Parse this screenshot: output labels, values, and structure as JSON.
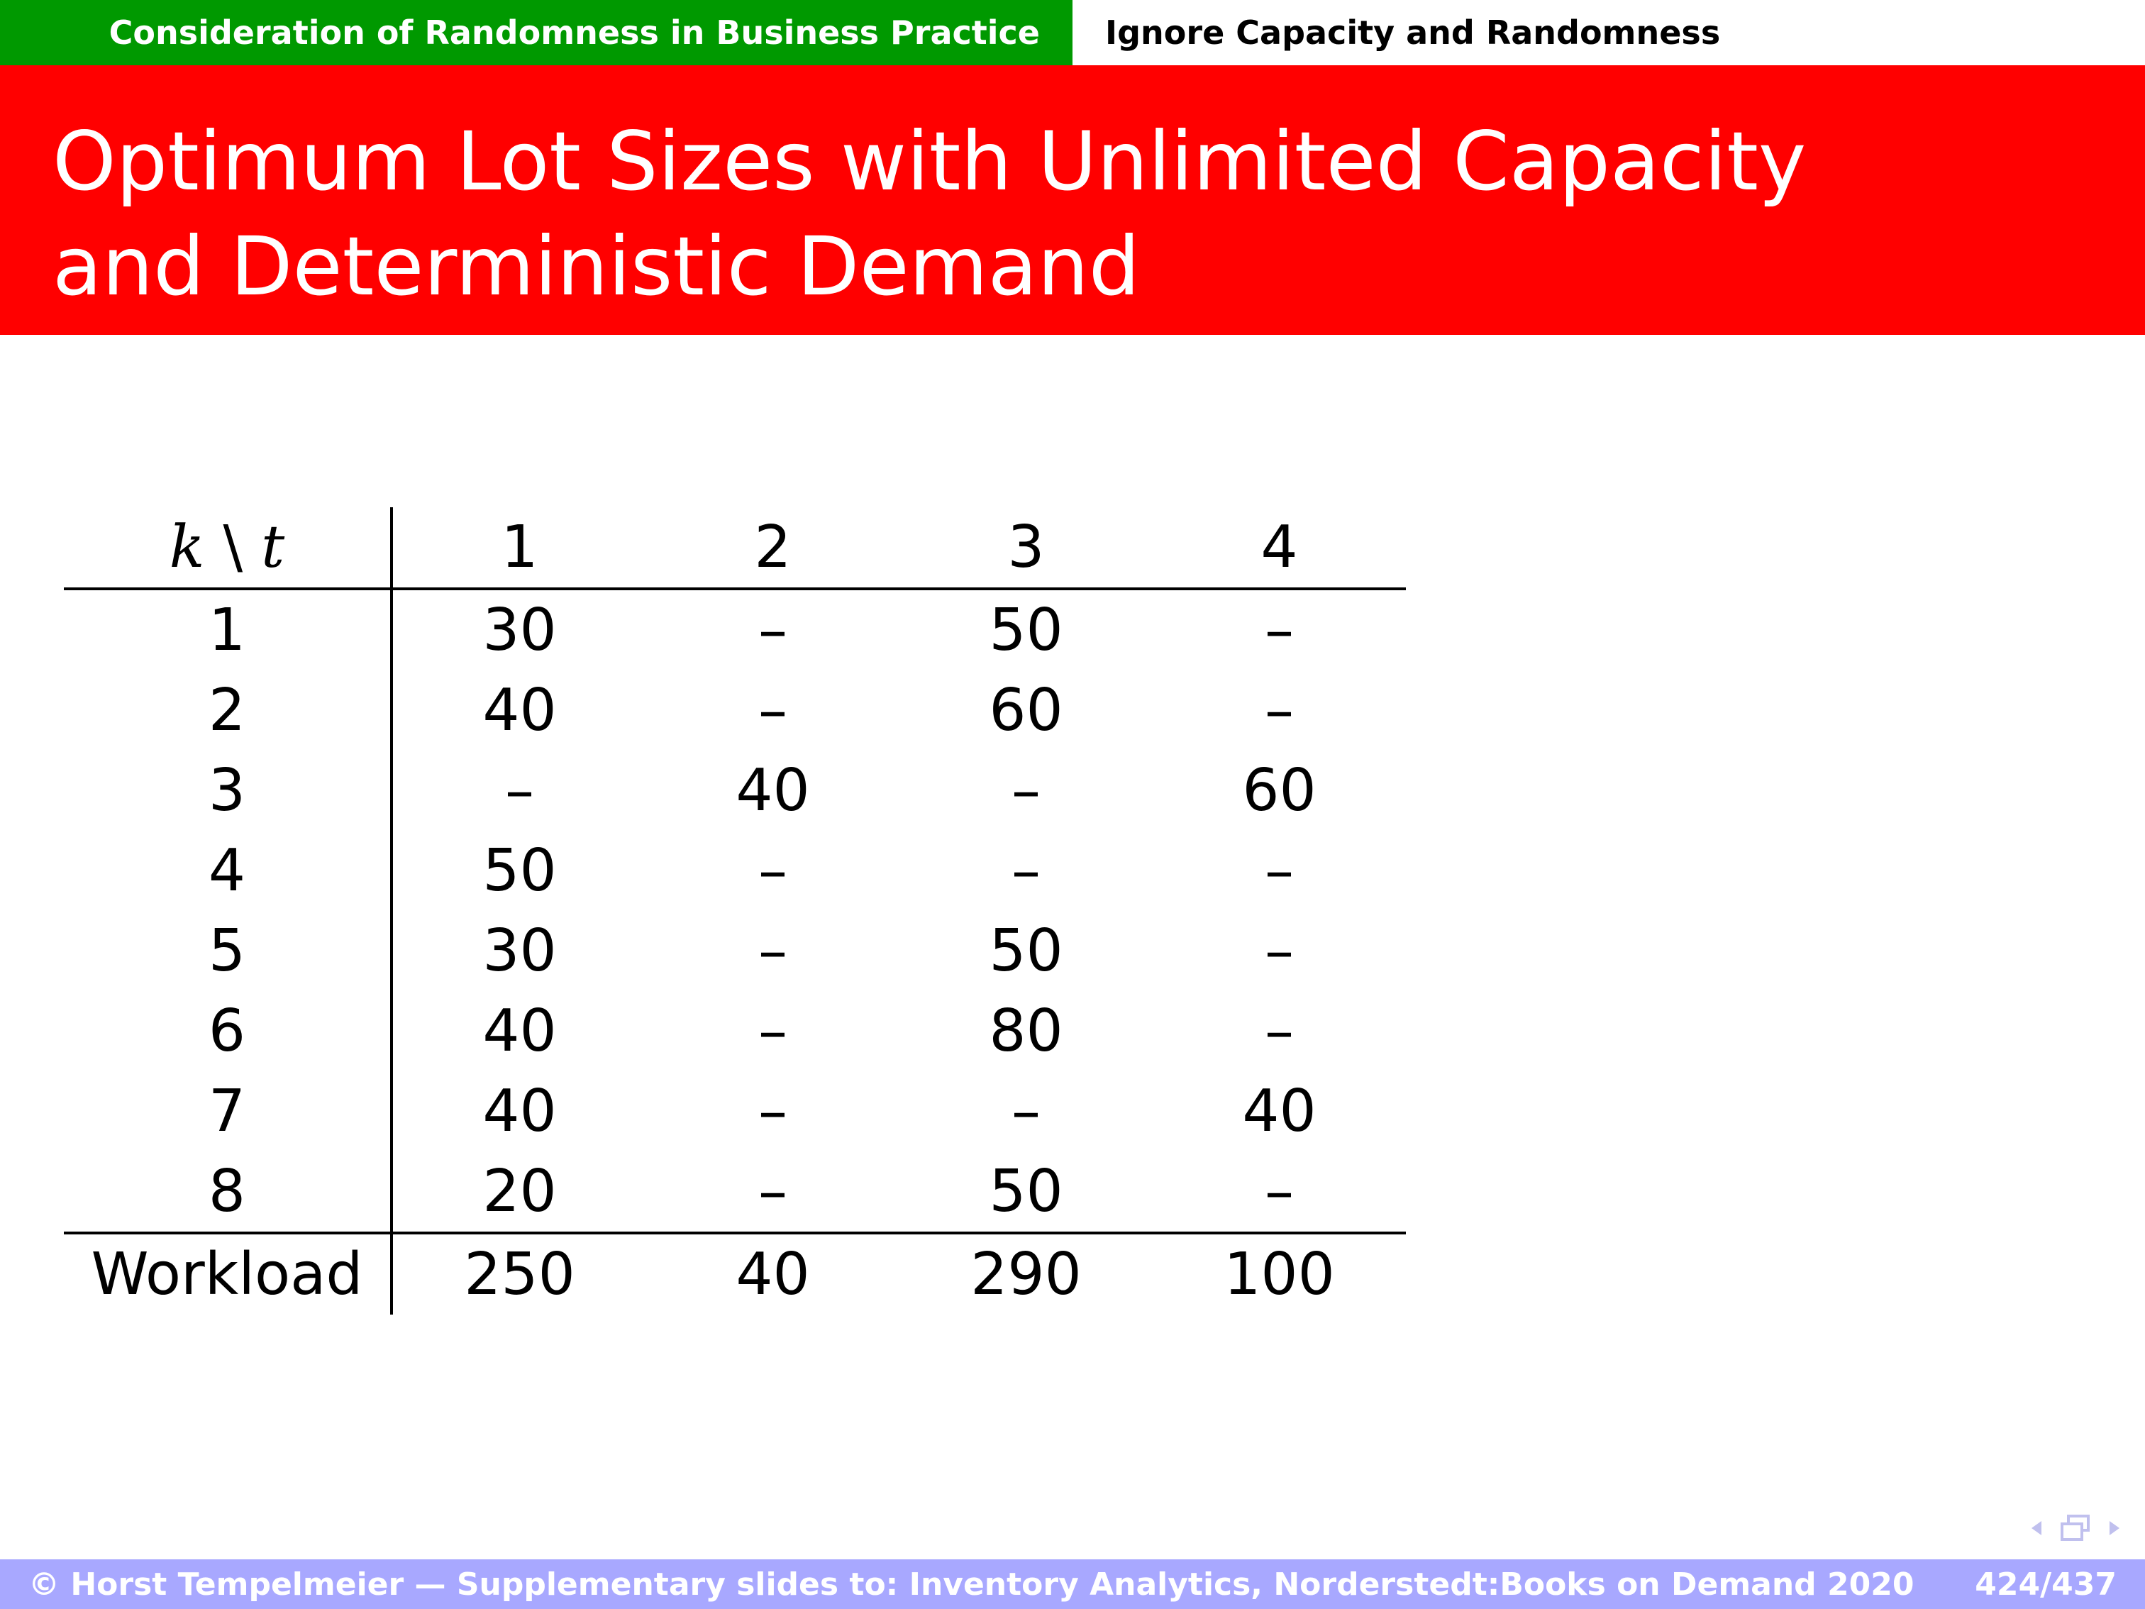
{
  "header": {
    "section": "Consideration of Randomness in Business Practice",
    "subsection": "Ignore Capacity and Randomness"
  },
  "slide": {
    "title": "Optimum Lot Sizes with Unlimited Capacity and Deterministic Demand"
  },
  "table": {
    "corner_k": "k",
    "corner_sep": "\\",
    "corner_t": "t",
    "periods": [
      "1",
      "2",
      "3",
      "4"
    ],
    "rows": [
      {
        "k": "1",
        "cells": [
          "30",
          "–",
          "50",
          "–"
        ]
      },
      {
        "k": "2",
        "cells": [
          "40",
          "–",
          "60",
          "–"
        ]
      },
      {
        "k": "3",
        "cells": [
          "–",
          "40",
          "–",
          "60"
        ]
      },
      {
        "k": "4",
        "cells": [
          "50",
          "–",
          "–",
          "–"
        ]
      },
      {
        "k": "5",
        "cells": [
          "30",
          "–",
          "50",
          "–"
        ]
      },
      {
        "k": "6",
        "cells": [
          "40",
          "–",
          "80",
          "–"
        ]
      },
      {
        "k": "7",
        "cells": [
          "40",
          "–",
          "–",
          "40"
        ]
      },
      {
        "k": "8",
        "cells": [
          "20",
          "–",
          "50",
          "–"
        ]
      }
    ],
    "workload_label": "Workload",
    "workload": [
      "250",
      "40",
      "290",
      "100"
    ]
  },
  "nav": {
    "icons": [
      "nav-prev-icon",
      "nav-window-icon",
      "nav-next-icon"
    ],
    "color": "#c0c0ee"
  },
  "footer": {
    "credit": "© Horst Tempelmeier — Supplementary slides to: Inventory Analytics, Norderstedt:Books on Demand 2020",
    "page": "424/437"
  },
  "colors": {
    "section_bar": "#009900",
    "title_band": "#ff0000",
    "footer_bar": "#a8a8ff"
  }
}
